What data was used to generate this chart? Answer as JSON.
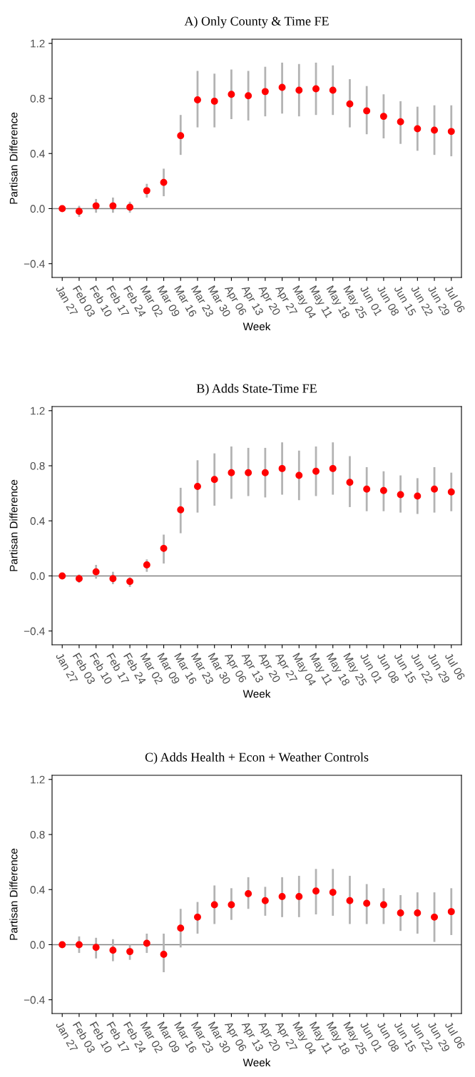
{
  "chart_data": [
    {
      "type": "scatter",
      "title": "A) Only County & Time FE",
      "xlabel": "Week",
      "ylabel": "Partisan Difference",
      "categories": [
        "Jan 27",
        "Feb 03",
        "Feb 10",
        "Feb 17",
        "Feb 24",
        "Mar 02",
        "Mar 09",
        "Mar 16",
        "Mar 23",
        "Mar 30",
        "Apr 06",
        "Apr 13",
        "Apr 20",
        "Apr 27",
        "May 04",
        "May 11",
        "May 18",
        "May 25",
        "Jun 01",
        "Jun 08",
        "Jun 15",
        "Jun 22",
        "Jun 29",
        "Jul 06"
      ],
      "series": [
        {
          "color": "#ff0000",
          "values": [
            0,
            -0.02,
            0.02,
            0.02,
            0.01,
            0.13,
            0.19,
            0.53,
            0.79,
            0.78,
            0.83,
            0.82,
            0.85,
            0.88,
            0.86,
            0.87,
            0.86,
            0.76,
            0.71,
            0.67,
            0.63,
            0.58,
            0.57,
            0.56
          ],
          "errors": [
            null,
            [
              -0.06,
              0.02
            ],
            [
              -0.03,
              0.07
            ],
            [
              -0.03,
              0.08
            ],
            [
              -0.03,
              0.05
            ],
            [
              0.08,
              0.18
            ],
            [
              0.09,
              0.29
            ],
            [
              0.39,
              0.68
            ],
            [
              0.59,
              1.0
            ],
            [
              0.59,
              0.98
            ],
            [
              0.65,
              1.01
            ],
            [
              0.64,
              1.0
            ],
            [
              0.67,
              1.03
            ],
            [
              0.69,
              1.06
            ],
            [
              0.67,
              1.05
            ],
            [
              0.68,
              1.06
            ],
            [
              0.68,
              1.04
            ],
            [
              0.59,
              0.94
            ],
            [
              0.54,
              0.89
            ],
            [
              0.51,
              0.83
            ],
            [
              0.47,
              0.78
            ],
            [
              0.42,
              0.74
            ],
            [
              0.39,
              0.75
            ],
            [
              0.38,
              0.75
            ]
          ]
        }
      ],
      "ylim": [
        -0.5,
        1.23
      ],
      "yticks": [
        {
          "value": -0.4,
          "label": "−0.4"
        },
        {
          "value": 0,
          "label": "0.0"
        },
        {
          "value": 0.4,
          "label": "0.4"
        },
        {
          "value": 0.8,
          "label": "0.8"
        },
        {
          "value": 1.2,
          "label": "1.2"
        }
      ],
      "ref_lines": [
        {
          "axis": "y",
          "value": 0,
          "color": "#808080"
        }
      ],
      "marker": "circle",
      "grid": false,
      "legend": false
    },
    {
      "type": "scatter",
      "title": "B) Adds State-Time FE",
      "xlabel": "Week",
      "ylabel": "Partisan Difference",
      "categories": [
        "Jan 27",
        "Feb 03",
        "Feb 10",
        "Feb 17",
        "Feb 24",
        "Mar 02",
        "Mar 09",
        "Mar 16",
        "Mar 23",
        "Mar 30",
        "Apr 06",
        "Apr 13",
        "Apr 20",
        "Apr 27",
        "May 04",
        "May 11",
        "May 18",
        "May 25",
        "Jun 01",
        "Jun 08",
        "Jun 15",
        "Jun 22",
        "Jun 29",
        "Jul 06"
      ],
      "series": [
        {
          "color": "#ff0000",
          "values": [
            0,
            -0.02,
            0.03,
            -0.02,
            -0.04,
            0.08,
            0.2,
            0.48,
            0.65,
            0.7,
            0.75,
            0.75,
            0.75,
            0.78,
            0.73,
            0.76,
            0.78,
            0.68,
            0.63,
            0.62,
            0.59,
            0.58,
            0.63,
            0.61
          ],
          "errors": [
            null,
            [
              -0.05,
              0.01
            ],
            [
              -0.02,
              0.08
            ],
            [
              -0.06,
              0.03
            ],
            [
              -0.08,
              -0.01
            ],
            [
              0.03,
              0.12
            ],
            [
              0.09,
              0.3
            ],
            [
              0.31,
              0.64
            ],
            [
              0.46,
              0.84
            ],
            [
              0.51,
              0.89
            ],
            [
              0.56,
              0.94
            ],
            [
              0.58,
              0.93
            ],
            [
              0.57,
              0.93
            ],
            [
              0.59,
              0.97
            ],
            [
              0.55,
              0.91
            ],
            [
              0.58,
              0.94
            ],
            [
              0.59,
              0.97
            ],
            [
              0.5,
              0.87
            ],
            [
              0.47,
              0.79
            ],
            [
              0.47,
              0.76
            ],
            [
              0.46,
              0.73
            ],
            [
              0.45,
              0.71
            ],
            [
              0.46,
              0.79
            ],
            [
              0.47,
              0.75
            ]
          ]
        }
      ],
      "ylim": [
        -0.5,
        1.23
      ],
      "yticks": [
        {
          "value": -0.4,
          "label": "−0.4"
        },
        {
          "value": 0,
          "label": "0.0"
        },
        {
          "value": 0.4,
          "label": "0.4"
        },
        {
          "value": 0.8,
          "label": "0.8"
        },
        {
          "value": 1.2,
          "label": "1.2"
        }
      ],
      "ref_lines": [
        {
          "axis": "y",
          "value": 0,
          "color": "#808080"
        }
      ],
      "marker": "circle",
      "grid": false,
      "legend": false
    },
    {
      "type": "scatter",
      "title": "C) Adds Health + Econ + Weather Controls",
      "xlabel": "Week",
      "ylabel": "Partisan Difference",
      "categories": [
        "Jan 27",
        "Feb 03",
        "Feb 10",
        "Feb 17",
        "Feb 24",
        "Mar 02",
        "Mar 09",
        "Mar 16",
        "Mar 23",
        "Mar 30",
        "Apr 06",
        "Apr 13",
        "Apr 20",
        "Apr 27",
        "May 04",
        "May 11",
        "May 18",
        "May 25",
        "Jun 01",
        "Jun 08",
        "Jun 15",
        "Jun 22",
        "Jun 29",
        "Jul 06"
      ],
      "series": [
        {
          "color": "#ff0000",
          "values": [
            0,
            0.0,
            -0.02,
            -0.04,
            -0.05,
            0.01,
            -0.07,
            0.12,
            0.2,
            0.29,
            0.29,
            0.37,
            0.32,
            0.35,
            0.35,
            0.39,
            0.38,
            0.32,
            0.3,
            0.29,
            0.23,
            0.23,
            0.2,
            0.24
          ],
          "errors": [
            null,
            [
              -0.06,
              0.06
            ],
            [
              -0.1,
              0.05
            ],
            [
              -0.12,
              0.04
            ],
            [
              -0.11,
              0.0
            ],
            [
              -0.06,
              0.08
            ],
            [
              -0.2,
              0.08
            ],
            [
              -0.02,
              0.26
            ],
            [
              0.08,
              0.31
            ],
            [
              0.15,
              0.43
            ],
            [
              0.18,
              0.41
            ],
            [
              0.26,
              0.49
            ],
            [
              0.21,
              0.42
            ],
            [
              0.2,
              0.49
            ],
            [
              0.2,
              0.5
            ],
            [
              0.22,
              0.55
            ],
            [
              0.21,
              0.55
            ],
            [
              0.15,
              0.5
            ],
            [
              0.15,
              0.44
            ],
            [
              0.15,
              0.41
            ],
            [
              0.1,
              0.36
            ],
            [
              0.08,
              0.38
            ],
            [
              0.02,
              0.38
            ],
            [
              0.07,
              0.41
            ]
          ]
        }
      ],
      "ylim": [
        -0.5,
        1.23
      ],
      "yticks": [
        {
          "value": -0.4,
          "label": "−0.4"
        },
        {
          "value": 0,
          "label": "0.0"
        },
        {
          "value": 0.4,
          "label": "0.4"
        },
        {
          "value": 0.8,
          "label": "0.8"
        },
        {
          "value": 1.2,
          "label": "1.2"
        }
      ],
      "ref_lines": [
        {
          "axis": "y",
          "value": 0,
          "color": "#808080"
        }
      ],
      "marker": "circle",
      "grid": false,
      "legend": false
    }
  ]
}
